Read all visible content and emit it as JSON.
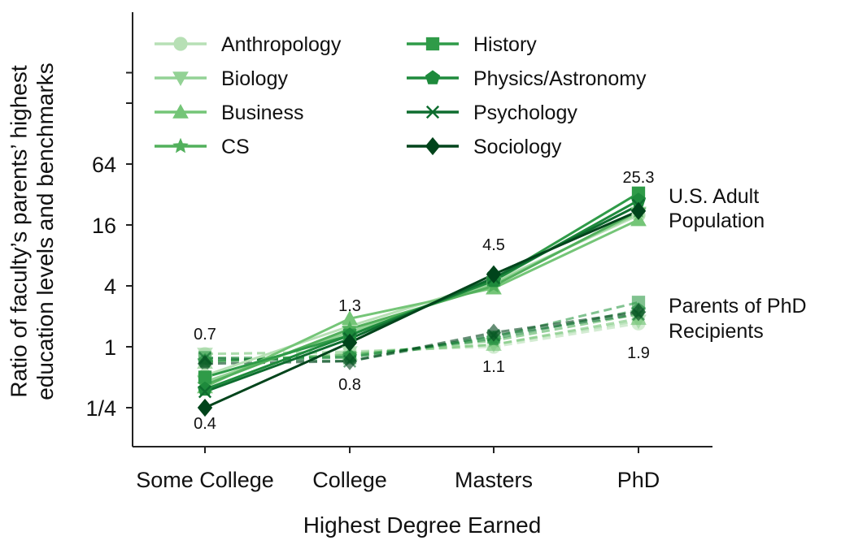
{
  "chart_data": {
    "type": "line",
    "xlabel": "Highest Degree Earned",
    "ylabel": "Ratio of faculty’s parents’ highest education levels and benchmarks",
    "y_scale": "log2",
    "ylim": [
      0.125,
      512
    ],
    "yticks": [
      {
        "value": 0.25,
        "label": "1/4"
      },
      {
        "value": 1,
        "label": "1"
      },
      {
        "value": 4,
        "label": "4"
      },
      {
        "value": 16,
        "label": "16"
      },
      {
        "value": 64,
        "label": "64"
      },
      {
        "value": 256,
        "label": ""
      },
      {
        "value": 512,
        "label": ""
      }
    ],
    "categories": [
      "Some College",
      "College",
      "Masters",
      "PhD"
    ],
    "legend": "top-left, two columns",
    "groups": [
      {
        "label": "U.S. Adult Population",
        "style": "solid"
      },
      {
        "label": "Parents of PhD Recipients",
        "style": "dashed"
      }
    ],
    "series": [
      {
        "name": "Anthropology",
        "color": "#b7e0b5",
        "marker": "circle",
        "us_adult": [
          0.52,
          1.6,
          4.4,
          20.0
        ],
        "phd_parents": [
          0.85,
          0.9,
          1.0,
          1.7
        ]
      },
      {
        "name": "Biology",
        "color": "#93d295",
        "marker": "triangle-down",
        "us_adult": [
          0.45,
          1.4,
          4.2,
          21.0
        ],
        "phd_parents": [
          0.85,
          0.88,
          1.05,
          1.8
        ]
      },
      {
        "name": "Business",
        "color": "#74c577",
        "marker": "triangle-up",
        "us_adult": [
          0.4,
          1.9,
          3.8,
          18.0
        ],
        "phd_parents": [
          0.7,
          0.85,
          1.05,
          1.9
        ]
      },
      {
        "name": "CS",
        "color": "#52b05c",
        "marker": "star",
        "us_adult": [
          0.42,
          1.5,
          4.0,
          22.0
        ],
        "phd_parents": [
          0.72,
          0.83,
          1.15,
          2.1
        ]
      },
      {
        "name": "History",
        "color": "#2f9b48",
        "marker": "square",
        "us_adult": [
          0.5,
          1.3,
          4.6,
          33.0
        ],
        "phd_parents": [
          0.78,
          0.78,
          1.25,
          2.75
        ]
      },
      {
        "name": "Physics/Astronomy",
        "color": "#1e8a3c",
        "marker": "pentagon",
        "us_adult": [
          0.38,
          1.3,
          4.5,
          28.0
        ],
        "phd_parents": [
          0.72,
          0.8,
          1.2,
          2.3
        ]
      },
      {
        "name": "Psychology",
        "color": "#0e6d2f",
        "marker": "x",
        "us_adult": [
          0.36,
          1.2,
          4.8,
          25.0
        ],
        "phd_parents": [
          0.77,
          0.72,
          1.3,
          2.1
        ]
      },
      {
        "name": "Sociology",
        "color": "#00441b",
        "marker": "diamond",
        "us_adult": [
          0.25,
          1.1,
          5.2,
          22.0
        ],
        "phd_parents": [
          0.68,
          0.72,
          1.38,
          2.2
        ]
      }
    ],
    "annotations": [
      {
        "category": "Some College",
        "value": 0.7,
        "text": "0.7"
      },
      {
        "category": "Some College",
        "value": 0.4,
        "text": "0.4"
      },
      {
        "category": "College",
        "value": 1.3,
        "text": "1.3"
      },
      {
        "category": "College",
        "value": 0.8,
        "text": "0.8"
      },
      {
        "category": "Masters",
        "value": 4.5,
        "text": "4.5"
      },
      {
        "category": "Masters",
        "value": 1.1,
        "text": "1.1"
      },
      {
        "category": "PhD",
        "value": 25.3,
        "text": "25.3"
      },
      {
        "category": "PhD",
        "value": 1.9,
        "text": "1.9"
      }
    ]
  }
}
